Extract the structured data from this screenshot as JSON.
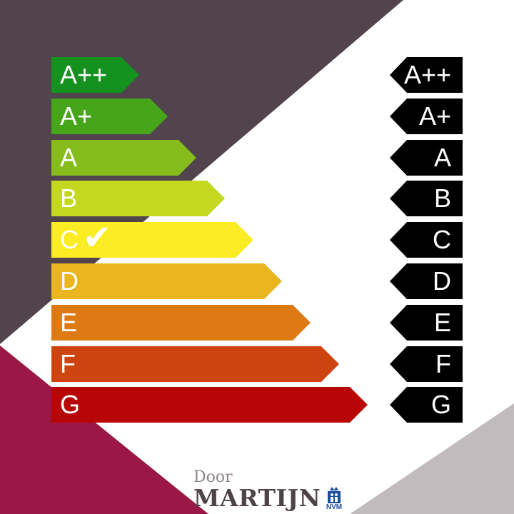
{
  "colors": {
    "bg_dark": "#51444d",
    "bg_magenta": "#9b1746",
    "bg_gray": "#c2bbbd",
    "right_arrow": "#000000",
    "nvm_blue": "#1a4fa0"
  },
  "labels": [
    {
      "label": "A++",
      "color": "#14911e"
    },
    {
      "label": "A+",
      "color": "#47a519"
    },
    {
      "label": "A",
      "color": "#86bd1c"
    },
    {
      "label": "B",
      "color": "#c4d81f"
    },
    {
      "label": "C",
      "color": "#fbec23",
      "selected": true
    },
    {
      "label": "D",
      "color": "#eab51e"
    },
    {
      "label": "E",
      "color": "#dd7a14"
    },
    {
      "label": "F",
      "color": "#ce4410"
    },
    {
      "label": "G",
      "color": "#b80607"
    }
  ],
  "selected_icon": "checkmark-icon",
  "logo": {
    "door": "Door",
    "name": "MARTIJN",
    "badge": "NVM"
  }
}
